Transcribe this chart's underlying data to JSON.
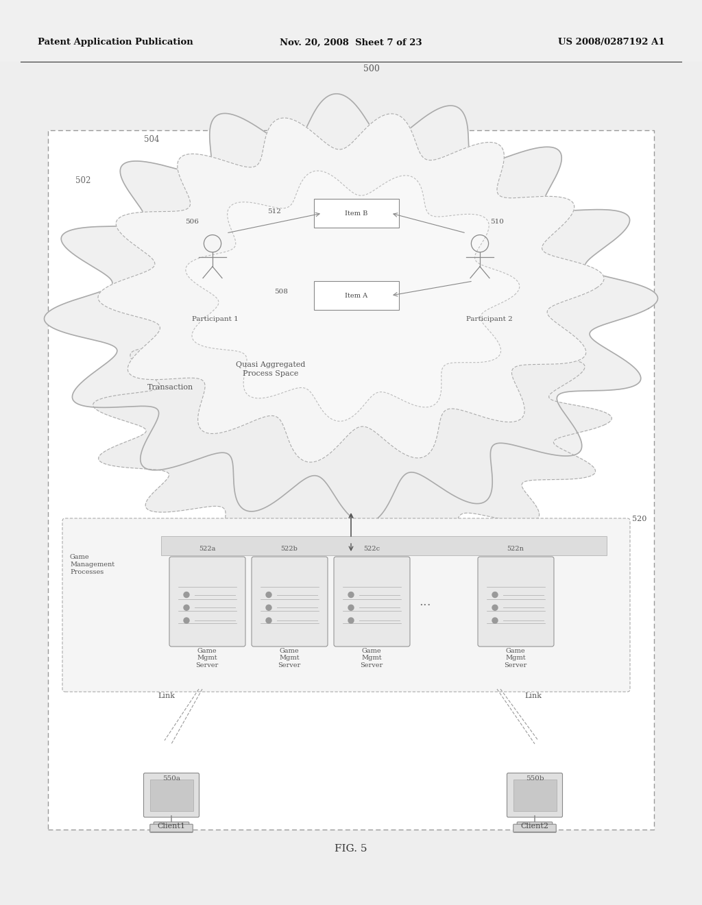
{
  "bg_color": "#ffffff",
  "page_bg": "#e8e8e8",
  "header_left": "Patent Application Publication",
  "header_mid": "Nov. 20, 2008  Sheet 7 of 23",
  "header_right": "US 2008/0287192 A1",
  "fig_label": "FIG. 5",
  "label_500": "500",
  "label_502": "502",
  "label_504": "504",
  "label_506": "506",
  "label_508": "508",
  "label_510": "510",
  "label_512": "512",
  "label_520": "520",
  "label_522a": "522a",
  "label_522b": "522b",
  "label_522c": "522c",
  "label_522n": "522n",
  "label_550a": "550a",
  "label_550b": "550b",
  "participant1": "Participant 1",
  "participant2": "Participant 2",
  "item_b": "Item B",
  "item_a": "Item A",
  "transaction": "Transaction",
  "quasi": "Quasi Aggregated\nProcess Space",
  "game_mgmt": "Game\nManagement\nProcesses",
  "server_names": [
    "Game\nMgmt\nServer",
    "Game\nMgmt\nServer",
    "Game\nMgmt\nServer",
    "Game\nMgmt\nServer"
  ],
  "dots": "...",
  "link1": "Link",
  "link2": "Link",
  "client1": "Client1",
  "client2": "Client2"
}
